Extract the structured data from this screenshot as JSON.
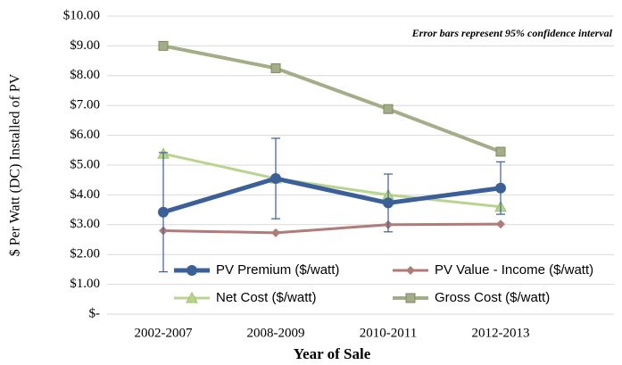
{
  "chart_data": {
    "type": "line",
    "annotation": "Error bars represent  95% confidence interval",
    "y_label": "$ Per Watt (DC) Installed of PV",
    "x_label": "Year of Sale",
    "categories": [
      "2002-2007",
      "2008-2009",
      "2010-2011",
      "2012-2013"
    ],
    "series": [
      {
        "name": "PV Premium ($/watt)",
        "color": "#3b5f99",
        "marker": "circle",
        "values": [
          3.42,
          4.55,
          3.73,
          4.23
        ],
        "errors": [
          2.0,
          1.35,
          0.97,
          0.88
        ]
      },
      {
        "name": "PV Value - Income ($/watt)",
        "color": "#b07b79",
        "marker": "diamond",
        "values": [
          2.8,
          2.73,
          3.0,
          3.02
        ]
      },
      {
        "name": "Net Cost ($/watt)",
        "color": "#b8d48e",
        "marker": "triangle",
        "values": [
          5.38,
          4.55,
          4.0,
          3.6
        ]
      },
      {
        "name": "Gross Cost ($/watt)",
        "color": "#a3ad86",
        "marker": "square",
        "values": [
          9.0,
          8.25,
          6.88,
          5.45
        ]
      }
    ],
    "ylim": [
      0,
      10
    ],
    "yticks": [
      {
        "value": 0,
        "label": "$-"
      },
      {
        "value": 1,
        "label": "$1.00"
      },
      {
        "value": 2,
        "label": "$2.00"
      },
      {
        "value": 3,
        "label": "$3.00"
      },
      {
        "value": 4,
        "label": "$4.00"
      },
      {
        "value": 5,
        "label": "$5.00"
      },
      {
        "value": 6,
        "label": "$6.00"
      },
      {
        "value": 7,
        "label": "$7.00"
      },
      {
        "value": 8,
        "label": "$8.00"
      },
      {
        "value": 9,
        "label": "$9.00"
      },
      {
        "value": 10,
        "label": "$10.00"
      }
    ],
    "grid": true
  }
}
